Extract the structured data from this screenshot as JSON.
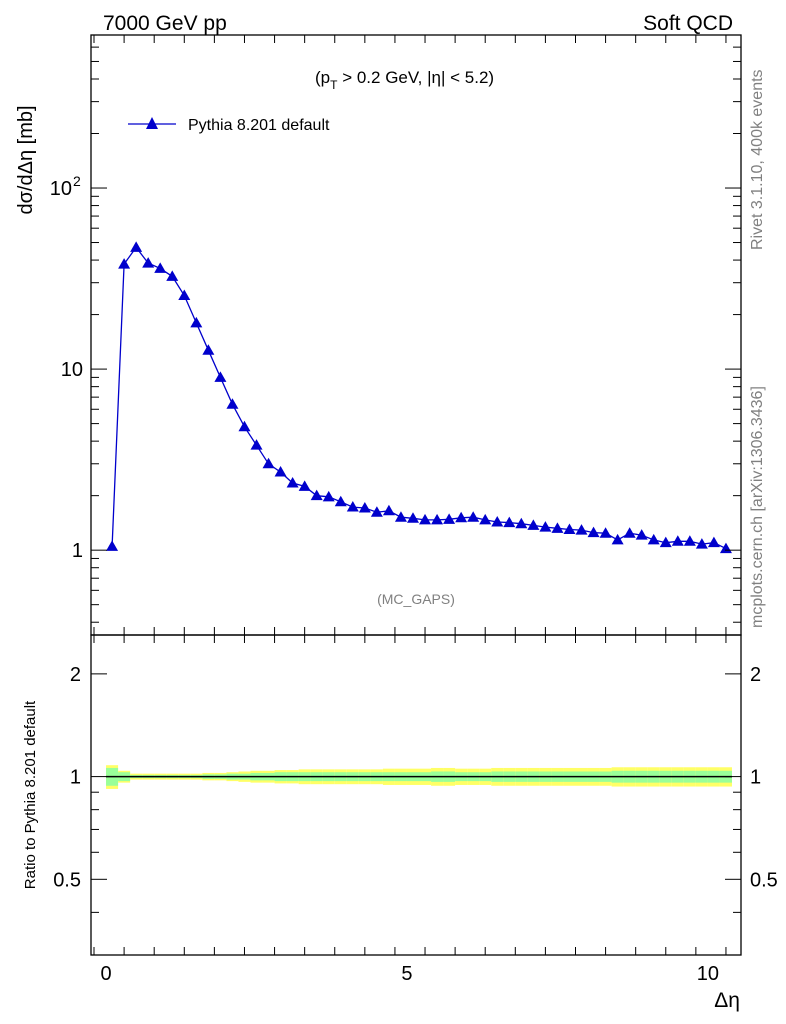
{
  "header": {
    "left": "7000 GeV pp",
    "right": "Soft QCD"
  },
  "side_text": {
    "rivet": "Rivet 3.1.10,  400k events",
    "mcplots": "mcplots.cern.ch [arXiv:1306.3436]"
  },
  "main_plot": {
    "ylabel": "dσ/dΔη [mb]",
    "cut_label": "(p_T > 0.2 GeV, |η| < 5.2)",
    "watermark": "(MC_GAPS)",
    "y_ticks": [
      {
        "value": 100,
        "label": "10",
        "sup": "2"
      },
      {
        "value": 10,
        "label": "10",
        "sup": ""
      },
      {
        "value": 1,
        "label": "1",
        "sup": ""
      }
    ]
  },
  "ratio_plot": {
    "ylabel": "Ratio to Pythia 8.201 default",
    "y_ticks": [
      {
        "value": 2,
        "label": "2"
      },
      {
        "value": 1,
        "label": "1"
      },
      {
        "value": 0.5,
        "label": "0.5"
      }
    ]
  },
  "x_axis": {
    "label": "Δη",
    "ticks": [
      {
        "value": 0,
        "label": "0"
      },
      {
        "value": 5,
        "label": "5"
      },
      {
        "value": 10,
        "label": "10"
      }
    ]
  },
  "colors": {
    "series": "#0000cc",
    "band_outer": "#ffff66",
    "band_inner": "#99ff99"
  },
  "chart_data": {
    "type": "line",
    "xlabel": "Δη",
    "ylabel": "dσ/dΔη [mb]",
    "xlim": [
      -0.25,
      10.55
    ],
    "ylim": [
      0.34,
      700
    ],
    "yscale": "log",
    "ratio_ylim": [
      0.3,
      2.6
    ],
    "ratio_yscale": "log",
    "legend_position": "top-left",
    "series": [
      {
        "name": "Pythia 8.201 default",
        "marker": "triangle",
        "x": [
          0.1,
          0.3,
          0.5,
          0.7,
          0.9,
          1.1,
          1.3,
          1.5,
          1.7,
          1.9,
          2.1,
          2.3,
          2.5,
          2.7,
          2.9,
          3.1,
          3.3,
          3.5,
          3.7,
          3.9,
          4.1,
          4.3,
          4.5,
          4.7,
          4.9,
          5.1,
          5.3,
          5.5,
          5.7,
          5.9,
          6.1,
          6.3,
          6.5,
          6.7,
          6.9,
          7.1,
          7.3,
          7.5,
          7.7,
          7.9,
          8.1,
          8.3,
          8.5,
          8.7,
          8.9,
          9.1,
          9.3,
          9.5,
          9.7,
          9.9,
          10.1,
          10.3
        ],
        "values": [
          1.05,
          38,
          47,
          38.5,
          36,
          32.5,
          25.5,
          18,
          12.7,
          9,
          6.4,
          4.8,
          3.8,
          3.0,
          2.7,
          2.35,
          2.25,
          2.0,
          1.97,
          1.85,
          1.73,
          1.71,
          1.62,
          1.65,
          1.52,
          1.5,
          1.47,
          1.47,
          1.48,
          1.51,
          1.52,
          1.47,
          1.43,
          1.42,
          1.4,
          1.37,
          1.34,
          1.32,
          1.3,
          1.29,
          1.25,
          1.24,
          1.14,
          1.24,
          1.21,
          1.14,
          1.1,
          1.12,
          1.12,
          1.08,
          1.1,
          1.02
        ],
        "ratio": [
          1,
          1,
          1,
          1,
          1,
          1,
          1,
          1,
          1,
          1,
          1,
          1,
          1,
          1,
          1,
          1,
          1,
          1,
          1,
          1,
          1,
          1,
          1,
          1,
          1,
          1,
          1,
          1,
          1,
          1,
          1,
          1,
          1,
          1,
          1,
          1,
          1,
          1,
          1,
          1,
          1,
          1,
          1,
          1,
          1,
          1,
          1,
          1,
          1,
          1,
          1,
          1
        ],
        "band_inner": [
          0.06,
          0.03,
          0.01,
          0.01,
          0.01,
          0.01,
          0.01,
          0.01,
          0.015,
          0.015,
          0.02,
          0.02,
          0.025,
          0.025,
          0.03,
          0.03,
          0.03,
          0.03,
          0.03,
          0.03,
          0.03,
          0.03,
          0.03,
          0.03,
          0.03,
          0.03,
          0.03,
          0.035,
          0.035,
          0.03,
          0.03,
          0.03,
          0.035,
          0.035,
          0.035,
          0.035,
          0.035,
          0.035,
          0.035,
          0.035,
          0.035,
          0.035,
          0.04,
          0.04,
          0.04,
          0.04,
          0.04,
          0.04,
          0.04,
          0.04,
          0.04,
          0.04
        ],
        "band_outer": [
          0.08,
          0.04,
          0.02,
          0.02,
          0.02,
          0.02,
          0.02,
          0.02,
          0.025,
          0.025,
          0.03,
          0.035,
          0.04,
          0.04,
          0.045,
          0.045,
          0.05,
          0.05,
          0.05,
          0.05,
          0.05,
          0.05,
          0.05,
          0.055,
          0.055,
          0.055,
          0.055,
          0.06,
          0.06,
          0.055,
          0.055,
          0.055,
          0.06,
          0.06,
          0.06,
          0.06,
          0.06,
          0.06,
          0.06,
          0.06,
          0.06,
          0.06,
          0.065,
          0.065,
          0.065,
          0.065,
          0.065,
          0.065,
          0.065,
          0.065,
          0.065,
          0.065
        ]
      }
    ]
  }
}
